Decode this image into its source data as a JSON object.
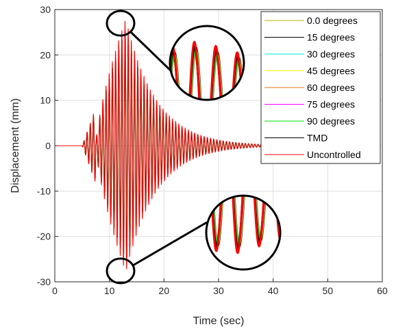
{
  "chart_data": {
    "type": "line",
    "title": "",
    "xlabel": "Time (sec)",
    "ylabel": "Displacement (mm)",
    "xlim": [
      0,
      60
    ],
    "ylim": [
      -30,
      30
    ],
    "xticks": [
      "0",
      "10",
      "20",
      "30",
      "40",
      "50",
      "60"
    ],
    "yticks": [
      "30",
      "20",
      "10",
      "0",
      "-10",
      "-20",
      "-30"
    ],
    "grid": true,
    "legend_position": "top-right",
    "response": {
      "onset_time": 7.5,
      "peak_time": 13,
      "end_time": 40,
      "oscillation_period": 0.58
    },
    "series": [
      {
        "name": "0.0 degrees",
        "color": "#b5b500",
        "peak_amplitude": 25.5
      },
      {
        "name": "15 degrees",
        "color": "#000000",
        "peak_amplitude": 25.5
      },
      {
        "name": "30 degrees",
        "color": "#00e5e5",
        "peak_amplitude": 25.0
      },
      {
        "name": "45 degrees",
        "color": "#ffff00",
        "peak_amplitude": 25.0
      },
      {
        "name": "60 degrees",
        "color": "#e5761a",
        "peak_amplitude": 24.5
      },
      {
        "name": "75 degrees",
        "color": "#ff00ff",
        "peak_amplitude": 24.5
      },
      {
        "name": "90 degrees",
        "color": "#00e600",
        "peak_amplitude": 24.0
      },
      {
        "name": "TMD",
        "color": "#000000",
        "peak_amplitude": 26.0
      },
      {
        "name": "Uncontrolled",
        "color": "#ff0000",
        "peak_amplitude": 28.0
      }
    ]
  }
}
